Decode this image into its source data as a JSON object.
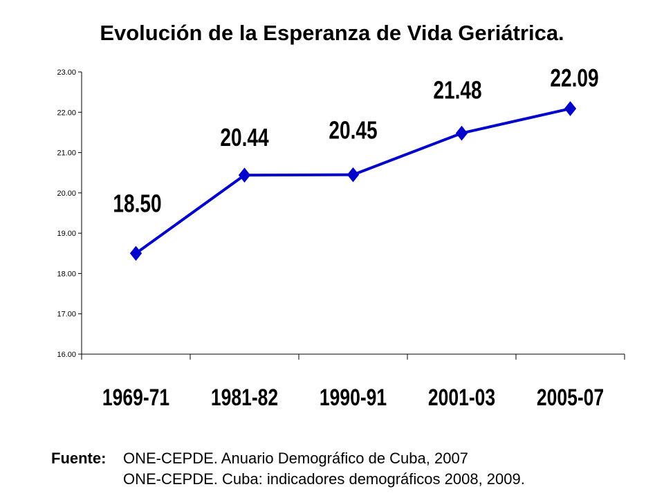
{
  "title": "Evolución de la Esperanza de Vida Geriátrica.",
  "chart_data": {
    "type": "line",
    "categories": [
      "1969-71",
      "1981-82",
      "1990-91",
      "2001-03",
      "2005-07"
    ],
    "series": [
      {
        "values": [
          18.5,
          20.44,
          20.45,
          21.48,
          22.09
        ]
      }
    ],
    "data_labels": [
      "18.50",
      "20.44",
      "20.45",
      "21.48",
      "22.09"
    ],
    "y_ticks": [
      "16.00",
      "17.00",
      "18.00",
      "19.00",
      "20.00",
      "21.00",
      "22.00",
      "23.00"
    ],
    "ylim": [
      16,
      23
    ],
    "grid": false,
    "line_color": "#0000cc",
    "marker": "diamond"
  },
  "source": {
    "label": "Fuente:",
    "line1": "ONE-CEPDE. Anuario Demográfico de Cuba, 2007",
    "line2": "ONE-CEPDE. Cuba: indicadores demográficos 2008, 2009."
  }
}
